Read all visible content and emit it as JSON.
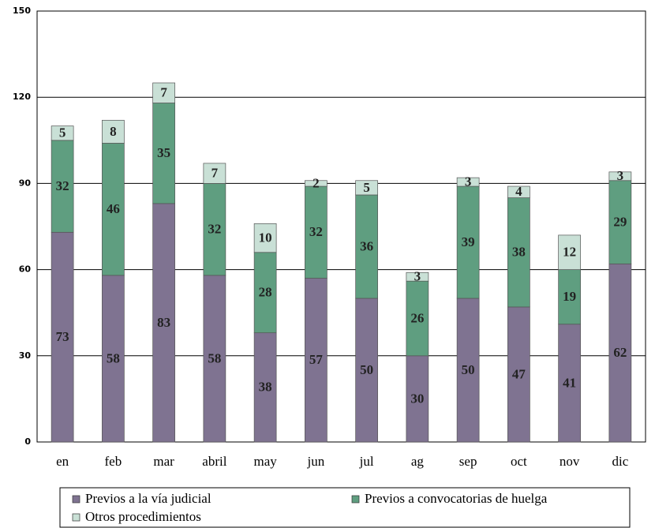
{
  "chart_data": {
    "type": "bar",
    "stacked": true,
    "categories": [
      "en",
      "feb",
      "mar",
      "abril",
      "may",
      "jun",
      "jul",
      "ag",
      "sep",
      "oct",
      "nov",
      "dic"
    ],
    "series": [
      {
        "name": "Previos a la vía judicial",
        "color": "#7f7391",
        "values": [
          73,
          58,
          83,
          58,
          38,
          57,
          50,
          30,
          50,
          47,
          41,
          62
        ]
      },
      {
        "name": "Previos a convocatorias de huelga",
        "color": "#5f9e80",
        "values": [
          32,
          46,
          35,
          32,
          28,
          32,
          36,
          26,
          39,
          38,
          19,
          29
        ]
      },
      {
        "name": "Otros procedimientos",
        "color": "#c9e0d6",
        "values": [
          5,
          8,
          7,
          7,
          10,
          2,
          5,
          3,
          3,
          4,
          12,
          3
        ]
      }
    ],
    "ylim": [
      0,
      150
    ],
    "yticks": [
      0,
      30,
      60,
      90,
      120,
      150
    ],
    "grid": true,
    "legend": "bottom"
  }
}
